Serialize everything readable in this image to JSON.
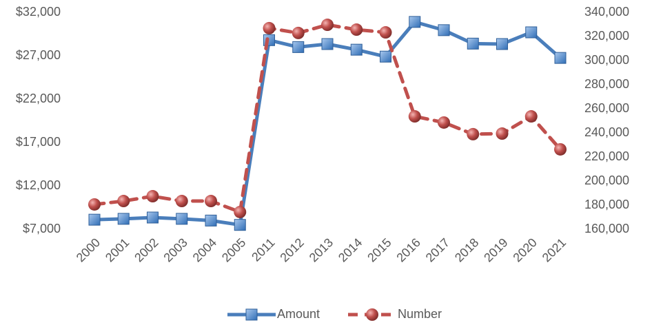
{
  "chart_data": {
    "type": "line",
    "categories": [
      "2000",
      "2001",
      "2002",
      "2003",
      "2004",
      "2005",
      "2011",
      "2012",
      "2013",
      "2014",
      "2015",
      "2016",
      "2017",
      "2018",
      "2019",
      "2020",
      "2021"
    ],
    "series": [
      {
        "name": "Amount",
        "color": "#4a7ebb",
        "marker": "square",
        "values": [
          8100,
          8200,
          8350,
          8200,
          8000,
          7500,
          28800,
          28000,
          28350,
          27700,
          26900,
          30900,
          29950,
          28400,
          28350,
          29700,
          26750
        ]
      },
      {
        "name": "Number",
        "color": "#c0504d",
        "marker": "circle",
        "dashed": true,
        "axis": "y2",
        "values": [
          180600,
          183400,
          187400,
          183400,
          183400,
          174300,
          326900,
          322900,
          329700,
          325700,
          323400,
          253700,
          248600,
          238900,
          239400,
          253700,
          226300
        ]
      }
    ],
    "ylim": [
      7000,
      32000
    ],
    "yticks": [
      {
        "value": 7000,
        "label": "$7,000"
      },
      {
        "value": 12000,
        "label": "$12,000"
      },
      {
        "value": 17000,
        "label": "$17,000"
      },
      {
        "value": 22000,
        "label": "$22,000"
      },
      {
        "value": 27000,
        "label": "$27,000"
      },
      {
        "value": 32000,
        "label": "$32,000"
      }
    ],
    "y2lim": [
      160000,
      340000
    ],
    "y2ticks": [
      {
        "value": 160000,
        "label": "160,000"
      },
      {
        "value": 180000,
        "label": "180,000"
      },
      {
        "value": 200000,
        "label": "200,000"
      },
      {
        "value": 220000,
        "label": "220,000"
      },
      {
        "value": 240000,
        "label": "240,000"
      },
      {
        "value": 260000,
        "label": "260,000"
      },
      {
        "value": 280000,
        "label": "280,000"
      },
      {
        "value": 300000,
        "label": "300,000"
      },
      {
        "value": 320000,
        "label": "320,000"
      },
      {
        "value": 340000,
        "label": "340,000"
      }
    ],
    "grid": false,
    "legend": "bottom"
  }
}
